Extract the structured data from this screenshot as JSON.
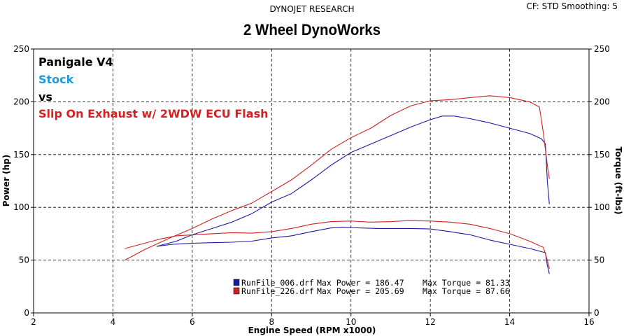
{
  "header": {
    "brand": "DYNOJET RESEARCH",
    "settings": "CF: STD  Smoothing: 5",
    "title": "2 Wheel DynoWorks"
  },
  "annotations": [
    {
      "text": "Panigale V4",
      "color": "#000000"
    },
    {
      "text": "Stock",
      "color": "#1e9bd7"
    },
    {
      "text": "vs",
      "color": "#000000"
    },
    {
      "text": "Slip On Exhaust w/ 2WDW ECU Flash",
      "color": "#d42020"
    }
  ],
  "legend": [
    {
      "file": "RunFile_006.drf",
      "max_power_label": "Max Power = 186.47",
      "max_torque_label": "Max Torque = 81.33",
      "color": "#1a1aa8"
    },
    {
      "file": "RunFile_226.drf",
      "max_power_label": "Max Power = 205.69",
      "max_torque_label": "Max Torque = 87.66",
      "color": "#cc2222"
    }
  ],
  "chart_data": {
    "type": "line",
    "xlabel": "Engine Speed (RPM x1000)",
    "ylabel_left": "Power (hp)",
    "ylabel_right": "Torque (ft-lbs)",
    "xlim": [
      2,
      16
    ],
    "ylim_left": [
      0,
      250
    ],
    "ylim_right": [
      0,
      250
    ],
    "x_ticks": [
      2,
      4,
      6,
      8,
      10,
      12,
      14,
      16
    ],
    "y_ticks": [
      0,
      50,
      100,
      150,
      200,
      250
    ],
    "grid": true,
    "series": [
      {
        "name": "RunFile_006.drf",
        "measure": "power",
        "color": "#1a1aa8",
        "points": [
          [
            5.1,
            63
          ],
          [
            5.6,
            68
          ],
          [
            6.0,
            74
          ],
          [
            6.5,
            80
          ],
          [
            7.0,
            86
          ],
          [
            7.5,
            94
          ],
          [
            8.0,
            105
          ],
          [
            8.5,
            113
          ],
          [
            9.0,
            126
          ],
          [
            9.5,
            140
          ],
          [
            10.0,
            152
          ],
          [
            10.5,
            160
          ],
          [
            11.0,
            168
          ],
          [
            11.5,
            176
          ],
          [
            12.0,
            183
          ],
          [
            12.3,
            186.5
          ],
          [
            12.6,
            186.5
          ],
          [
            13.0,
            184
          ],
          [
            13.5,
            180
          ],
          [
            14.0,
            175
          ],
          [
            14.5,
            170
          ],
          [
            14.8,
            165
          ],
          [
            14.9,
            160
          ],
          [
            14.95,
            125
          ],
          [
            15.0,
            103
          ]
        ]
      },
      {
        "name": "RunFile_226.drf",
        "measure": "power",
        "color": "#cc2222",
        "points": [
          [
            4.3,
            50
          ],
          [
            4.8,
            60
          ],
          [
            5.5,
            72
          ],
          [
            6.0,
            80
          ],
          [
            6.5,
            89
          ],
          [
            7.0,
            97
          ],
          [
            7.5,
            104
          ],
          [
            8.0,
            115
          ],
          [
            8.5,
            126
          ],
          [
            9.0,
            140
          ],
          [
            9.5,
            155
          ],
          [
            10.0,
            166
          ],
          [
            10.5,
            175
          ],
          [
            11.0,
            187
          ],
          [
            11.5,
            196
          ],
          [
            12.0,
            201
          ],
          [
            12.5,
            202
          ],
          [
            13.0,
            204
          ],
          [
            13.5,
            205.7
          ],
          [
            14.0,
            204
          ],
          [
            14.5,
            200
          ],
          [
            14.75,
            195
          ],
          [
            14.85,
            170
          ],
          [
            14.95,
            140
          ],
          [
            15.0,
            127
          ]
        ]
      },
      {
        "name": "RunFile_006.drf",
        "measure": "torque",
        "color": "#1a1aa8",
        "points": [
          [
            5.1,
            63
          ],
          [
            5.5,
            65
          ],
          [
            6.0,
            66
          ],
          [
            6.5,
            66.5
          ],
          [
            7.0,
            67
          ],
          [
            7.5,
            68
          ],
          [
            8.0,
            71
          ],
          [
            8.5,
            73
          ],
          [
            9.0,
            77
          ],
          [
            9.5,
            80.5
          ],
          [
            9.8,
            81.3
          ],
          [
            10.2,
            80.5
          ],
          [
            10.7,
            80
          ],
          [
            11.5,
            80
          ],
          [
            12.0,
            79.5
          ],
          [
            12.5,
            77
          ],
          [
            13.0,
            74
          ],
          [
            13.5,
            69
          ],
          [
            14.0,
            65
          ],
          [
            14.5,
            61
          ],
          [
            14.9,
            57
          ],
          [
            14.95,
            45
          ],
          [
            15.0,
            37
          ]
        ]
      },
      {
        "name": "RunFile_226.drf",
        "measure": "torque",
        "color": "#cc2222",
        "points": [
          [
            4.3,
            61
          ],
          [
            4.8,
            66
          ],
          [
            5.2,
            70
          ],
          [
            5.6,
            73
          ],
          [
            6.0,
            74
          ],
          [
            6.5,
            75
          ],
          [
            7.0,
            76
          ],
          [
            7.5,
            75.5
          ],
          [
            8.0,
            77
          ],
          [
            8.5,
            80
          ],
          [
            9.0,
            84
          ],
          [
            9.5,
            86.5
          ],
          [
            10.0,
            87
          ],
          [
            10.5,
            86
          ],
          [
            11.0,
            86.5
          ],
          [
            11.5,
            87.5
          ],
          [
            12.0,
            87
          ],
          [
            12.5,
            86
          ],
          [
            13.0,
            84
          ],
          [
            13.5,
            80
          ],
          [
            14.0,
            75
          ],
          [
            14.5,
            68
          ],
          [
            14.85,
            62
          ],
          [
            14.95,
            50
          ],
          [
            15.0,
            42
          ]
        ]
      }
    ]
  }
}
